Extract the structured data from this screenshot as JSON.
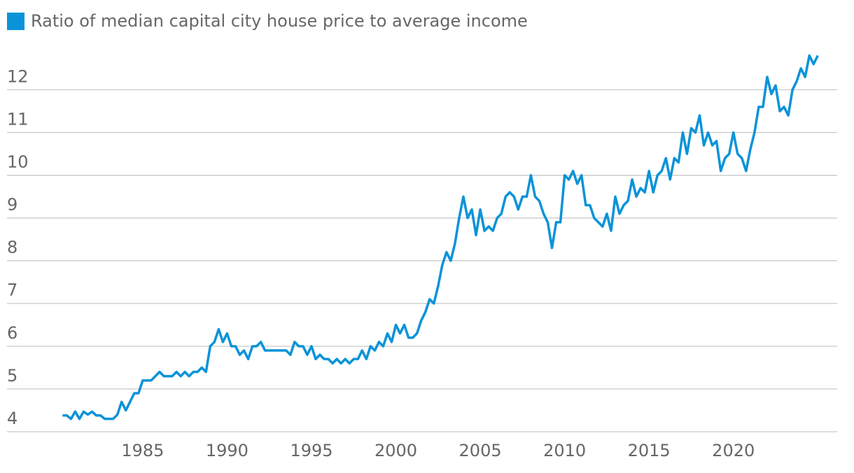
{
  "chart_data": {
    "type": "line",
    "series": [
      {
        "name": "Ratio of median capital city house price to average income",
        "color": "#0a93d8",
        "values": [
          4.38,
          4.38,
          4.3,
          4.47,
          4.3,
          4.47,
          4.4,
          4.47,
          4.38,
          4.38,
          4.3,
          4.3,
          4.3,
          4.4,
          4.7,
          4.5,
          4.7,
          4.9,
          4.9,
          5.2,
          5.2,
          5.2,
          5.3,
          5.4,
          5.3,
          5.3,
          5.3,
          5.4,
          5.3,
          5.4,
          5.3,
          5.4,
          5.4,
          5.5,
          5.4,
          6.0,
          6.1,
          6.4,
          6.1,
          6.3,
          6.0,
          6.0,
          5.8,
          5.9,
          5.7,
          6.0,
          6.0,
          6.1,
          5.9,
          5.9,
          5.9,
          5.9,
          5.9,
          5.9,
          5.8,
          6.1,
          6.0,
          6.0,
          5.8,
          6.0,
          5.7,
          5.8,
          5.7,
          5.7,
          5.6,
          5.7,
          5.6,
          5.7,
          5.6,
          5.7,
          5.7,
          5.9,
          5.7,
          6.0,
          5.9,
          6.1,
          6.0,
          6.3,
          6.1,
          6.5,
          6.3,
          6.5,
          6.2,
          6.2,
          6.3,
          6.6,
          6.8,
          7.1,
          7.0,
          7.4,
          7.9,
          8.2,
          8.0,
          8.4,
          9.0,
          9.5,
          9.0,
          9.2,
          8.6,
          9.2,
          8.7,
          8.8,
          8.7,
          9.0,
          9.1,
          9.5,
          9.6,
          9.5,
          9.2,
          9.5,
          9.5,
          10.0,
          9.5,
          9.4,
          9.1,
          8.9,
          8.3,
          8.9,
          8.9,
          10.0,
          9.9,
          10.1,
          9.8,
          10.0,
          9.3,
          9.3,
          9.0,
          8.9,
          8.8,
          9.1,
          8.7,
          9.5,
          9.1,
          9.3,
          9.4,
          9.9,
          9.5,
          9.7,
          9.6,
          10.1,
          9.6,
          10.0,
          10.1,
          10.4,
          9.9,
          10.4,
          10.3,
          11.0,
          10.5,
          11.1,
          11.0,
          11.4,
          10.7,
          11.0,
          10.7,
          10.8,
          10.1,
          10.4,
          10.5,
          11.0,
          10.5,
          10.4,
          10.1,
          10.6,
          11.0,
          11.6,
          11.6,
          12.3,
          11.9,
          12.1,
          11.5,
          11.6,
          11.4,
          12.0,
          12.2,
          12.5,
          12.3,
          12.8,
          12.6,
          12.8
        ]
      }
    ],
    "x": [
      1980.25,
      1980.5,
      1980.75,
      1981,
      1981.25,
      1981.5,
      1981.75,
      1982,
      1982.25,
      1982.5,
      1982.75,
      1983,
      1983.25,
      1983.5,
      1983.75,
      1984,
      1984.25,
      1984.5,
      1984.75,
      1985,
      1985.25,
      1985.5,
      1985.75,
      1986,
      1986.25,
      1986.5,
      1986.75,
      1987,
      1987.25,
      1987.5,
      1987.75,
      1988,
      1988.25,
      1988.5,
      1988.75,
      1989,
      1989.25,
      1989.5,
      1989.75,
      1990,
      1990.25,
      1990.5,
      1990.75,
      1991,
      1991.25,
      1991.5,
      1991.75,
      1992,
      1992.25,
      1992.5,
      1992.75,
      1993,
      1993.25,
      1993.5,
      1993.75,
      1994,
      1994.25,
      1994.5,
      1994.75,
      1995,
      1995.25,
      1995.5,
      1995.75,
      1996,
      1996.25,
      1996.5,
      1996.75,
      1997,
      1997.25,
      1997.5,
      1997.75,
      1998,
      1998.25,
      1998.5,
      1998.75,
      1999,
      1999.25,
      1999.5,
      1999.75,
      2000,
      2000.25,
      2000.5,
      2000.75,
      2001,
      2001.25,
      2001.5,
      2001.75,
      2002,
      2002.25,
      2002.5,
      2002.75,
      2003,
      2003.25,
      2003.5,
      2003.75,
      2004,
      2004.25,
      2004.5,
      2004.75,
      2005,
      2005.25,
      2005.5,
      2005.75,
      2006,
      2006.25,
      2006.5,
      2006.75,
      2007,
      2007.25,
      2007.5,
      2007.75,
      2008,
      2008.25,
      2008.5,
      2008.75,
      2009,
      2009.25,
      2009.5,
      2009.75,
      2010,
      2010.25,
      2010.5,
      2010.75,
      2011,
      2011.25,
      2011.5,
      2011.75,
      2012,
      2012.25,
      2012.5,
      2012.75,
      2013,
      2013.25,
      2013.5,
      2013.75,
      2014,
      2014.25,
      2014.5,
      2014.75,
      2015,
      2015.25,
      2015.5,
      2015.75,
      2016,
      2016.25,
      2016.5,
      2016.75,
      2017,
      2017.25,
      2017.5,
      2017.75,
      2018,
      2018.25,
      2018.5,
      2018.75,
      2019,
      2019.25,
      2019.5,
      2019.75,
      2020,
      2020.25,
      2020.5,
      2020.75,
      2021,
      2021.25,
      2021.5,
      2021.75,
      2022,
      2022.25,
      2022.5,
      2022.75,
      2023,
      2023.25,
      2023.5,
      2023.75,
      2024,
      2024.25,
      2024.5,
      2024.75,
      2025
    ],
    "xlim": [
      1977,
      2026.15
    ],
    "xticks": [
      1985,
      1990,
      1995,
      2000,
      2005,
      2010,
      2015,
      2020
    ],
    "ylim": [
      4,
      13.2
    ],
    "yticks": [
      4,
      5,
      6,
      7,
      8,
      9,
      10,
      11,
      12
    ],
    "grid": true
  }
}
